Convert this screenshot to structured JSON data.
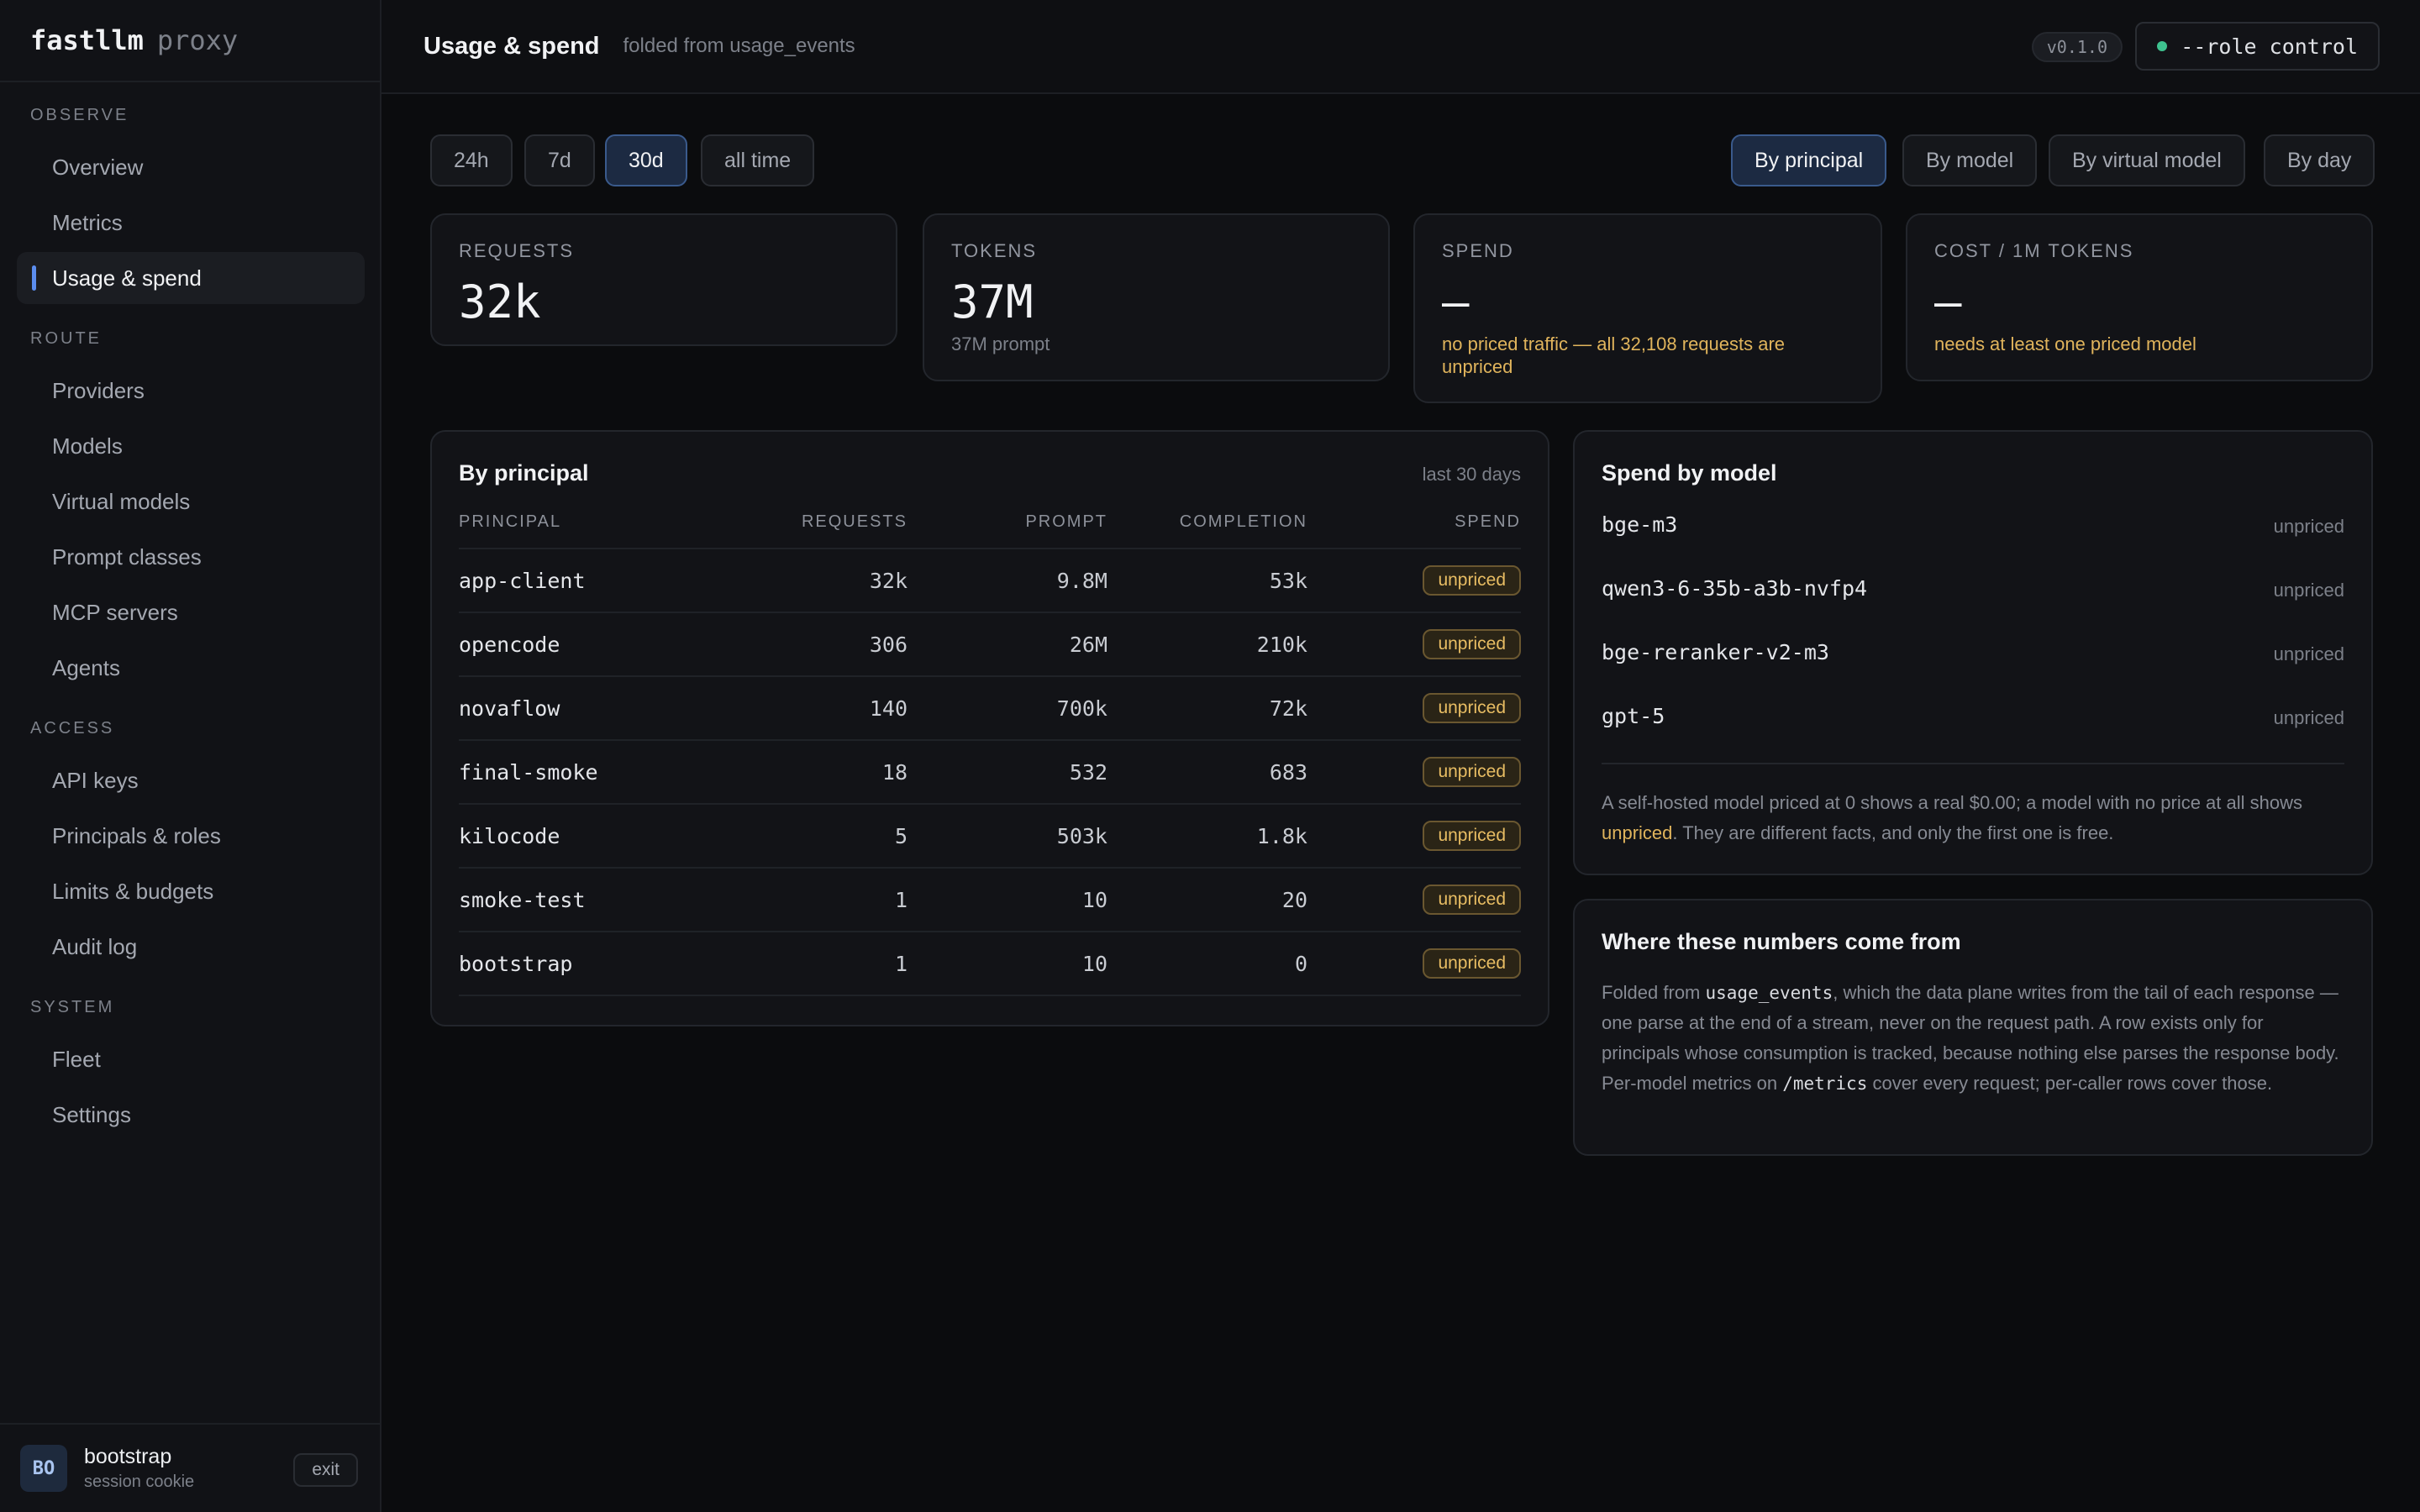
{
  "brand": {
    "name": "fastllm",
    "suffix": "proxy"
  },
  "sidebar": {
    "sections": [
      {
        "label": "OBSERVE",
        "items": [
          {
            "label": "Overview"
          },
          {
            "label": "Metrics"
          },
          {
            "label": "Usage & spend",
            "active": true
          }
        ]
      },
      {
        "label": "ROUTE",
        "items": [
          {
            "label": "Providers"
          },
          {
            "label": "Models"
          },
          {
            "label": "Virtual models"
          },
          {
            "label": "Prompt classes"
          },
          {
            "label": "MCP servers"
          },
          {
            "label": "Agents"
          }
        ]
      },
      {
        "label": "ACCESS",
        "items": [
          {
            "label": "API keys"
          },
          {
            "label": "Principals & roles"
          },
          {
            "label": "Limits & budgets"
          },
          {
            "label": "Audit log"
          }
        ]
      },
      {
        "label": "SYSTEM",
        "items": [
          {
            "label": "Fleet"
          },
          {
            "label": "Settings"
          }
        ]
      }
    ],
    "user": {
      "initials": "BO",
      "name": "bootstrap",
      "session": "session cookie",
      "exit_label": "exit"
    }
  },
  "header": {
    "title": "Usage & spend",
    "subtitle": "folded from usage_events",
    "version": "v0.1.0",
    "role": "--role control"
  },
  "ranges": {
    "options": [
      "24h",
      "7d",
      "30d",
      "all time"
    ],
    "selected": "30d"
  },
  "groupings": {
    "options": [
      "By principal",
      "By model",
      "By virtual model",
      "By day"
    ],
    "selected": "By principal"
  },
  "stats": {
    "requests": {
      "label": "REQUESTS",
      "value": "32k"
    },
    "tokens": {
      "label": "TOKENS",
      "value": "37M",
      "note": "37M prompt"
    },
    "spend": {
      "label": "SPEND",
      "value": "—",
      "note": "no priced traffic — all 32,108 requests are unpriced"
    },
    "cost": {
      "label": "COST / 1M TOKENS",
      "value": "—",
      "note": "needs at least one priced model"
    }
  },
  "principal_table": {
    "title": "By principal",
    "period": "last 30 days",
    "columns": [
      "PRINCIPAL",
      "REQUESTS",
      "PROMPT",
      "COMPLETION",
      "SPEND"
    ],
    "rows": [
      {
        "principal": "app-client",
        "requests": "32k",
        "prompt": "9.8M",
        "completion": "53k",
        "spend": "unpriced"
      },
      {
        "principal": "opencode",
        "requests": "306",
        "prompt": "26M",
        "completion": "210k",
        "spend": "unpriced"
      },
      {
        "principal": "novaflow",
        "requests": "140",
        "prompt": "700k",
        "completion": "72k",
        "spend": "unpriced"
      },
      {
        "principal": "final-smoke",
        "requests": "18",
        "prompt": "532",
        "completion": "683",
        "spend": "unpriced"
      },
      {
        "principal": "kilocode",
        "requests": "5",
        "prompt": "503k",
        "completion": "1.8k",
        "spend": "unpriced"
      },
      {
        "principal": "smoke-test",
        "requests": "1",
        "prompt": "10",
        "completion": "20",
        "spend": "unpriced"
      },
      {
        "principal": "bootstrap",
        "requests": "1",
        "prompt": "10",
        "completion": "0",
        "spend": "unpriced"
      }
    ]
  },
  "spend_by_model": {
    "title": "Spend by model",
    "models": [
      {
        "name": "bge-m3",
        "value": "unpriced"
      },
      {
        "name": "qwen3-6-35b-a3b-nvfp4",
        "value": "unpriced"
      },
      {
        "name": "bge-reranker-v2-m3",
        "value": "unpriced"
      },
      {
        "name": "gpt-5",
        "value": "unpriced"
      }
    ],
    "note_before": "A self-hosted model priced at 0 shows a real $0.00; a model with no price at all shows ",
    "note_highlight": "unpriced",
    "note_after": ". They are different facts, and only the first one is free."
  },
  "source_info": {
    "title": "Where these numbers come from",
    "text_1": "Folded from ",
    "code_1": "usage_events",
    "text_2": ", which the data plane writes from the tail of each response — one parse at the end of a stream, never on the request path. A row exists only for principals whose consumption is tracked, because nothing else parses the response body. Per-model metrics on ",
    "code_2": "/metrics",
    "text_3": " cover every request; per-caller rows cover those."
  },
  "colors": {
    "accent": "#5b8def",
    "warning": "#e0b45c",
    "status_ok": "#3ec28f"
  }
}
